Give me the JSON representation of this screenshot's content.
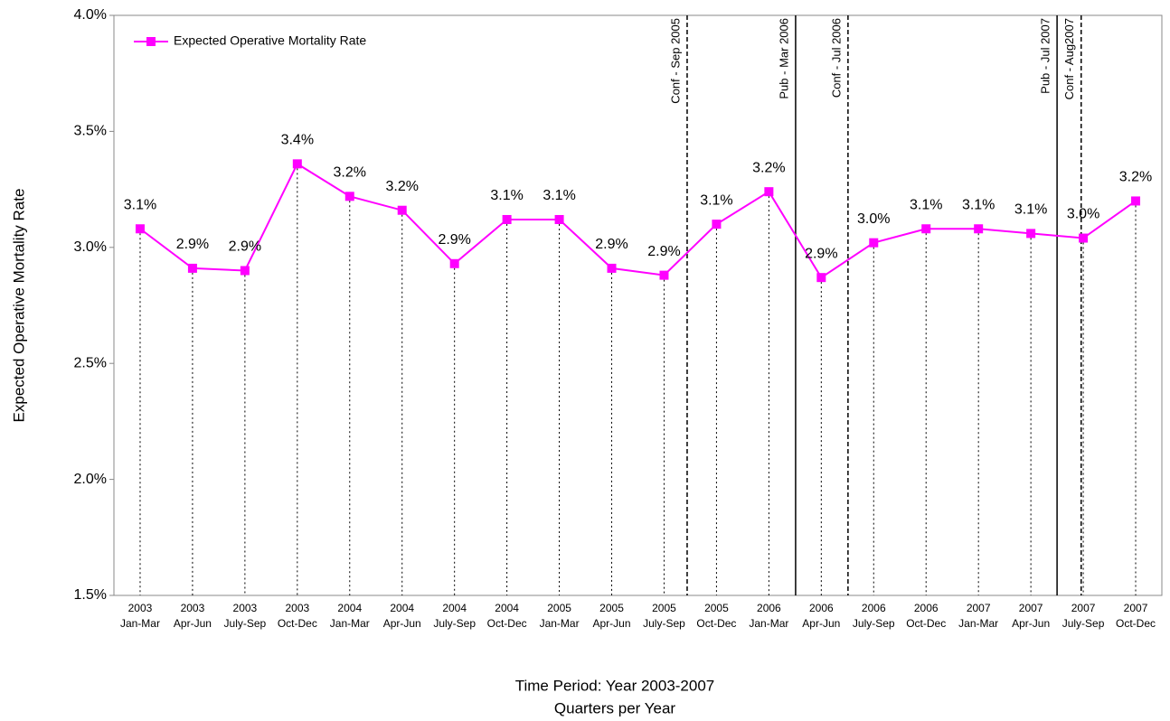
{
  "chart_data": {
    "type": "line",
    "y_label": "Expected Operative  Mortality Rate",
    "x_label": [
      "Time Period: Year 2003-2007",
      "Quarters per Year"
    ],
    "categories": [
      [
        "2003",
        "Jan-Mar"
      ],
      [
        "2003",
        "Apr-Jun"
      ],
      [
        "2003",
        "July-Sep"
      ],
      [
        "2003",
        "Oct-Dec"
      ],
      [
        "2004",
        "Jan-Mar"
      ],
      [
        "2004",
        "Apr-Jun"
      ],
      [
        "2004",
        "July-Sep"
      ],
      [
        "2004",
        "Oct-Dec"
      ],
      [
        "2005",
        "Jan-Mar"
      ],
      [
        "2005",
        "Apr-Jun"
      ],
      [
        "2005",
        "July-Sep"
      ],
      [
        "2005",
        "Oct-Dec"
      ],
      [
        "2006",
        "Jan-Mar"
      ],
      [
        "2006",
        "Apr-Jun"
      ],
      [
        "2006",
        "July-Sep"
      ],
      [
        "2006",
        "Oct-Dec"
      ],
      [
        "2007",
        "Jan-Mar"
      ],
      [
        "2007",
        "Apr-Jun"
      ],
      [
        "2007",
        "July-Sep"
      ],
      [
        "2007",
        "Oct-Dec"
      ]
    ],
    "series": [
      {
        "name": "Expected Operative Mortality Rate",
        "color": "#ff00ff",
        "values": [
          3.08,
          2.91,
          2.9,
          3.36,
          3.22,
          3.16,
          2.93,
          3.12,
          3.12,
          2.91,
          2.88,
          3.1,
          3.24,
          2.87,
          3.02,
          3.08,
          3.08,
          3.06,
          3.04,
          3.2
        ],
        "value_labels": [
          "3.1%",
          "2.9%",
          "2.9%",
          "3.4%",
          "3.2%",
          "3.2%",
          "2.9%",
          "3.1%",
          "3.1%",
          "2.9%",
          "2.9%",
          "3.1%",
          "3.2%",
          "2.9%",
          "3.0%",
          "3.1%",
          "3.1%",
          "3.1%",
          "3.0%",
          "3.2%"
        ]
      }
    ],
    "ylim": [
      1.5,
      4.0
    ],
    "yticks": [
      {
        "value": 1.5,
        "label": "1.5%"
      },
      {
        "value": 2.0,
        "label": "2.0%"
      },
      {
        "value": 2.5,
        "label": "2.5%"
      },
      {
        "value": 3.0,
        "label": "3.0%"
      },
      {
        "value": 3.5,
        "label": "3.5%"
      },
      {
        "value": 4.0,
        "label": "4.0%"
      }
    ],
    "legend": "upper left",
    "annotations": [
      {
        "text": "Conf - Sep 2005",
        "x": 10.44,
        "style": "dashed"
      },
      {
        "text": "Pub - Mar 2006",
        "x": 12.51,
        "style": "solid"
      },
      {
        "text": "Conf - Jul 2006",
        "x": 13.51,
        "style": "dashed"
      },
      {
        "text": "Pub -  Jul 2007",
        "x": 17.5,
        "style": "solid"
      },
      {
        "text": "Conf - Aug2007",
        "x": 17.96,
        "style": "dashed"
      }
    ]
  }
}
